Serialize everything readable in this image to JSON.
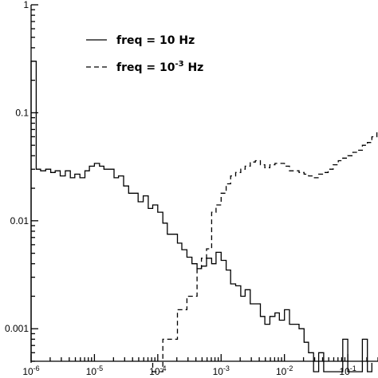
{
  "chart_data": {
    "type": "line",
    "step": true,
    "x_scale": "log",
    "y_scale": "log",
    "xlim": [
      1e-06,
      0.3
    ],
    "ylim": [
      0.0005,
      1
    ],
    "x_ticks": [
      {
        "value": 1e-06,
        "base": "10",
        "exp": "-6"
      },
      {
        "value": 1e-05,
        "base": "10",
        "exp": "-5"
      },
      {
        "value": 0.0001,
        "base": "10",
        "exp": "-4"
      },
      {
        "value": 0.001,
        "base": "10",
        "exp": "-3"
      },
      {
        "value": 0.01,
        "base": "10",
        "exp": "-2"
      },
      {
        "value": 0.1,
        "base": "10",
        "exp": "-1"
      }
    ],
    "y_ticks": [
      {
        "value": 1,
        "label": "1"
      },
      {
        "value": 0.1,
        "label": "0.1"
      },
      {
        "value": 0.01,
        "label": "0.01"
      },
      {
        "value": 0.001,
        "label": "0.001"
      }
    ],
    "legend": {
      "placement": "top-left",
      "entries": [
        {
          "style": "solid",
          "text": "freq = 10 Hz"
        },
        {
          "style": "dashed",
          "base": "freq = 10",
          "exp": "-3",
          "suffix": " Hz"
        }
      ]
    },
    "series": [
      {
        "name": "freq = 10 Hz",
        "line": "solid",
        "edges_log10": [
          -6.0,
          -5.92,
          -5.85,
          -5.77,
          -5.69,
          -5.62,
          -5.54,
          -5.46,
          -5.38,
          -5.31,
          -5.23,
          -5.15,
          -5.08,
          -5.0,
          -4.92,
          -4.85,
          -4.77,
          -4.69,
          -4.62,
          -4.54,
          -4.46,
          -4.38,
          -4.31,
          -4.23,
          -4.15,
          -4.08,
          -4.0,
          -3.92,
          -3.85,
          -3.77,
          -3.69,
          -3.62,
          -3.54,
          -3.46,
          -3.38,
          -3.31,
          -3.23,
          -3.15,
          -3.08,
          -3.0,
          -2.92,
          -2.85,
          -2.77,
          -2.69,
          -2.62,
          -2.54,
          -2.46,
          -2.38,
          -2.31,
          -2.23,
          -2.15,
          -2.08,
          -2.0,
          -1.92,
          -1.85,
          -1.77,
          -1.69,
          -1.62,
          -1.54,
          -1.46,
          -1.38,
          -1.31,
          -1.23,
          -1.15,
          -1.08,
          -1.0,
          -0.92,
          -0.85,
          -0.77,
          -0.69,
          -0.62
        ],
        "values": [
          0.3,
          0.03,
          0.029,
          0.03,
          0.028,
          0.029,
          0.026,
          0.029,
          0.025,
          0.027,
          0.025,
          0.029,
          0.032,
          0.034,
          0.032,
          0.03,
          0.03,
          0.025,
          0.026,
          0.021,
          0.018,
          0.018,
          0.015,
          0.017,
          0.013,
          0.014,
          0.012,
          0.0095,
          0.0075,
          0.0075,
          0.0062,
          0.0054,
          0.0046,
          0.004,
          0.0036,
          0.0038,
          0.0045,
          0.004,
          0.0051,
          0.0043,
          0.0035,
          0.0026,
          0.0025,
          0.002,
          0.0023,
          0.0017,
          0.0017,
          0.0013,
          0.0011,
          0.0013,
          0.0014,
          0.0012,
          0.0015,
          0.0011,
          0.0011,
          0.001,
          0.00075,
          0.0006,
          0.0004,
          0.0006,
          0.0004,
          0.0004,
          0.0004,
          0.0004,
          0.0008,
          0.0004,
          0.0004,
          0.0004,
          0.0008,
          0.0004
        ]
      },
      {
        "name": "freq = 10^-3 Hz",
        "line": "dashed",
        "edges_log10": [
          -4.08,
          -4.0,
          -3.92,
          -3.85,
          -3.77,
          -3.69,
          -3.62,
          -3.54,
          -3.46,
          -3.38,
          -3.31,
          -3.23,
          -3.15,
          -3.08,
          -3.0,
          -2.92,
          -2.85,
          -2.77,
          -2.69,
          -2.62,
          -2.54,
          -2.46,
          -2.38,
          -2.31,
          -2.23,
          -2.15,
          -2.08,
          -2.0,
          -1.92,
          -1.85,
          -1.77,
          -1.69,
          -1.62,
          -1.54,
          -1.46,
          -1.38,
          -1.31,
          -1.23,
          -1.15,
          -1.08,
          -1.0,
          -0.92,
          -0.85,
          -0.77,
          -0.69,
          -0.62,
          -0.54,
          -0.5
        ],
        "values": [
          0.0004,
          0.0004,
          0.0008,
          0.0008,
          0.0008,
          0.0015,
          0.0015,
          0.002,
          0.002,
          0.0036,
          0.0045,
          0.0055,
          0.012,
          0.014,
          0.018,
          0.022,
          0.026,
          0.028,
          0.03,
          0.032,
          0.035,
          0.036,
          0.033,
          0.031,
          0.033,
          0.034,
          0.034,
          0.032,
          0.029,
          0.029,
          0.028,
          0.027,
          0.026,
          0.025,
          0.027,
          0.028,
          0.03,
          0.033,
          0.036,
          0.038,
          0.04,
          0.043,
          0.045,
          0.05,
          0.053,
          0.06,
          0.068
        ]
      }
    ]
  }
}
